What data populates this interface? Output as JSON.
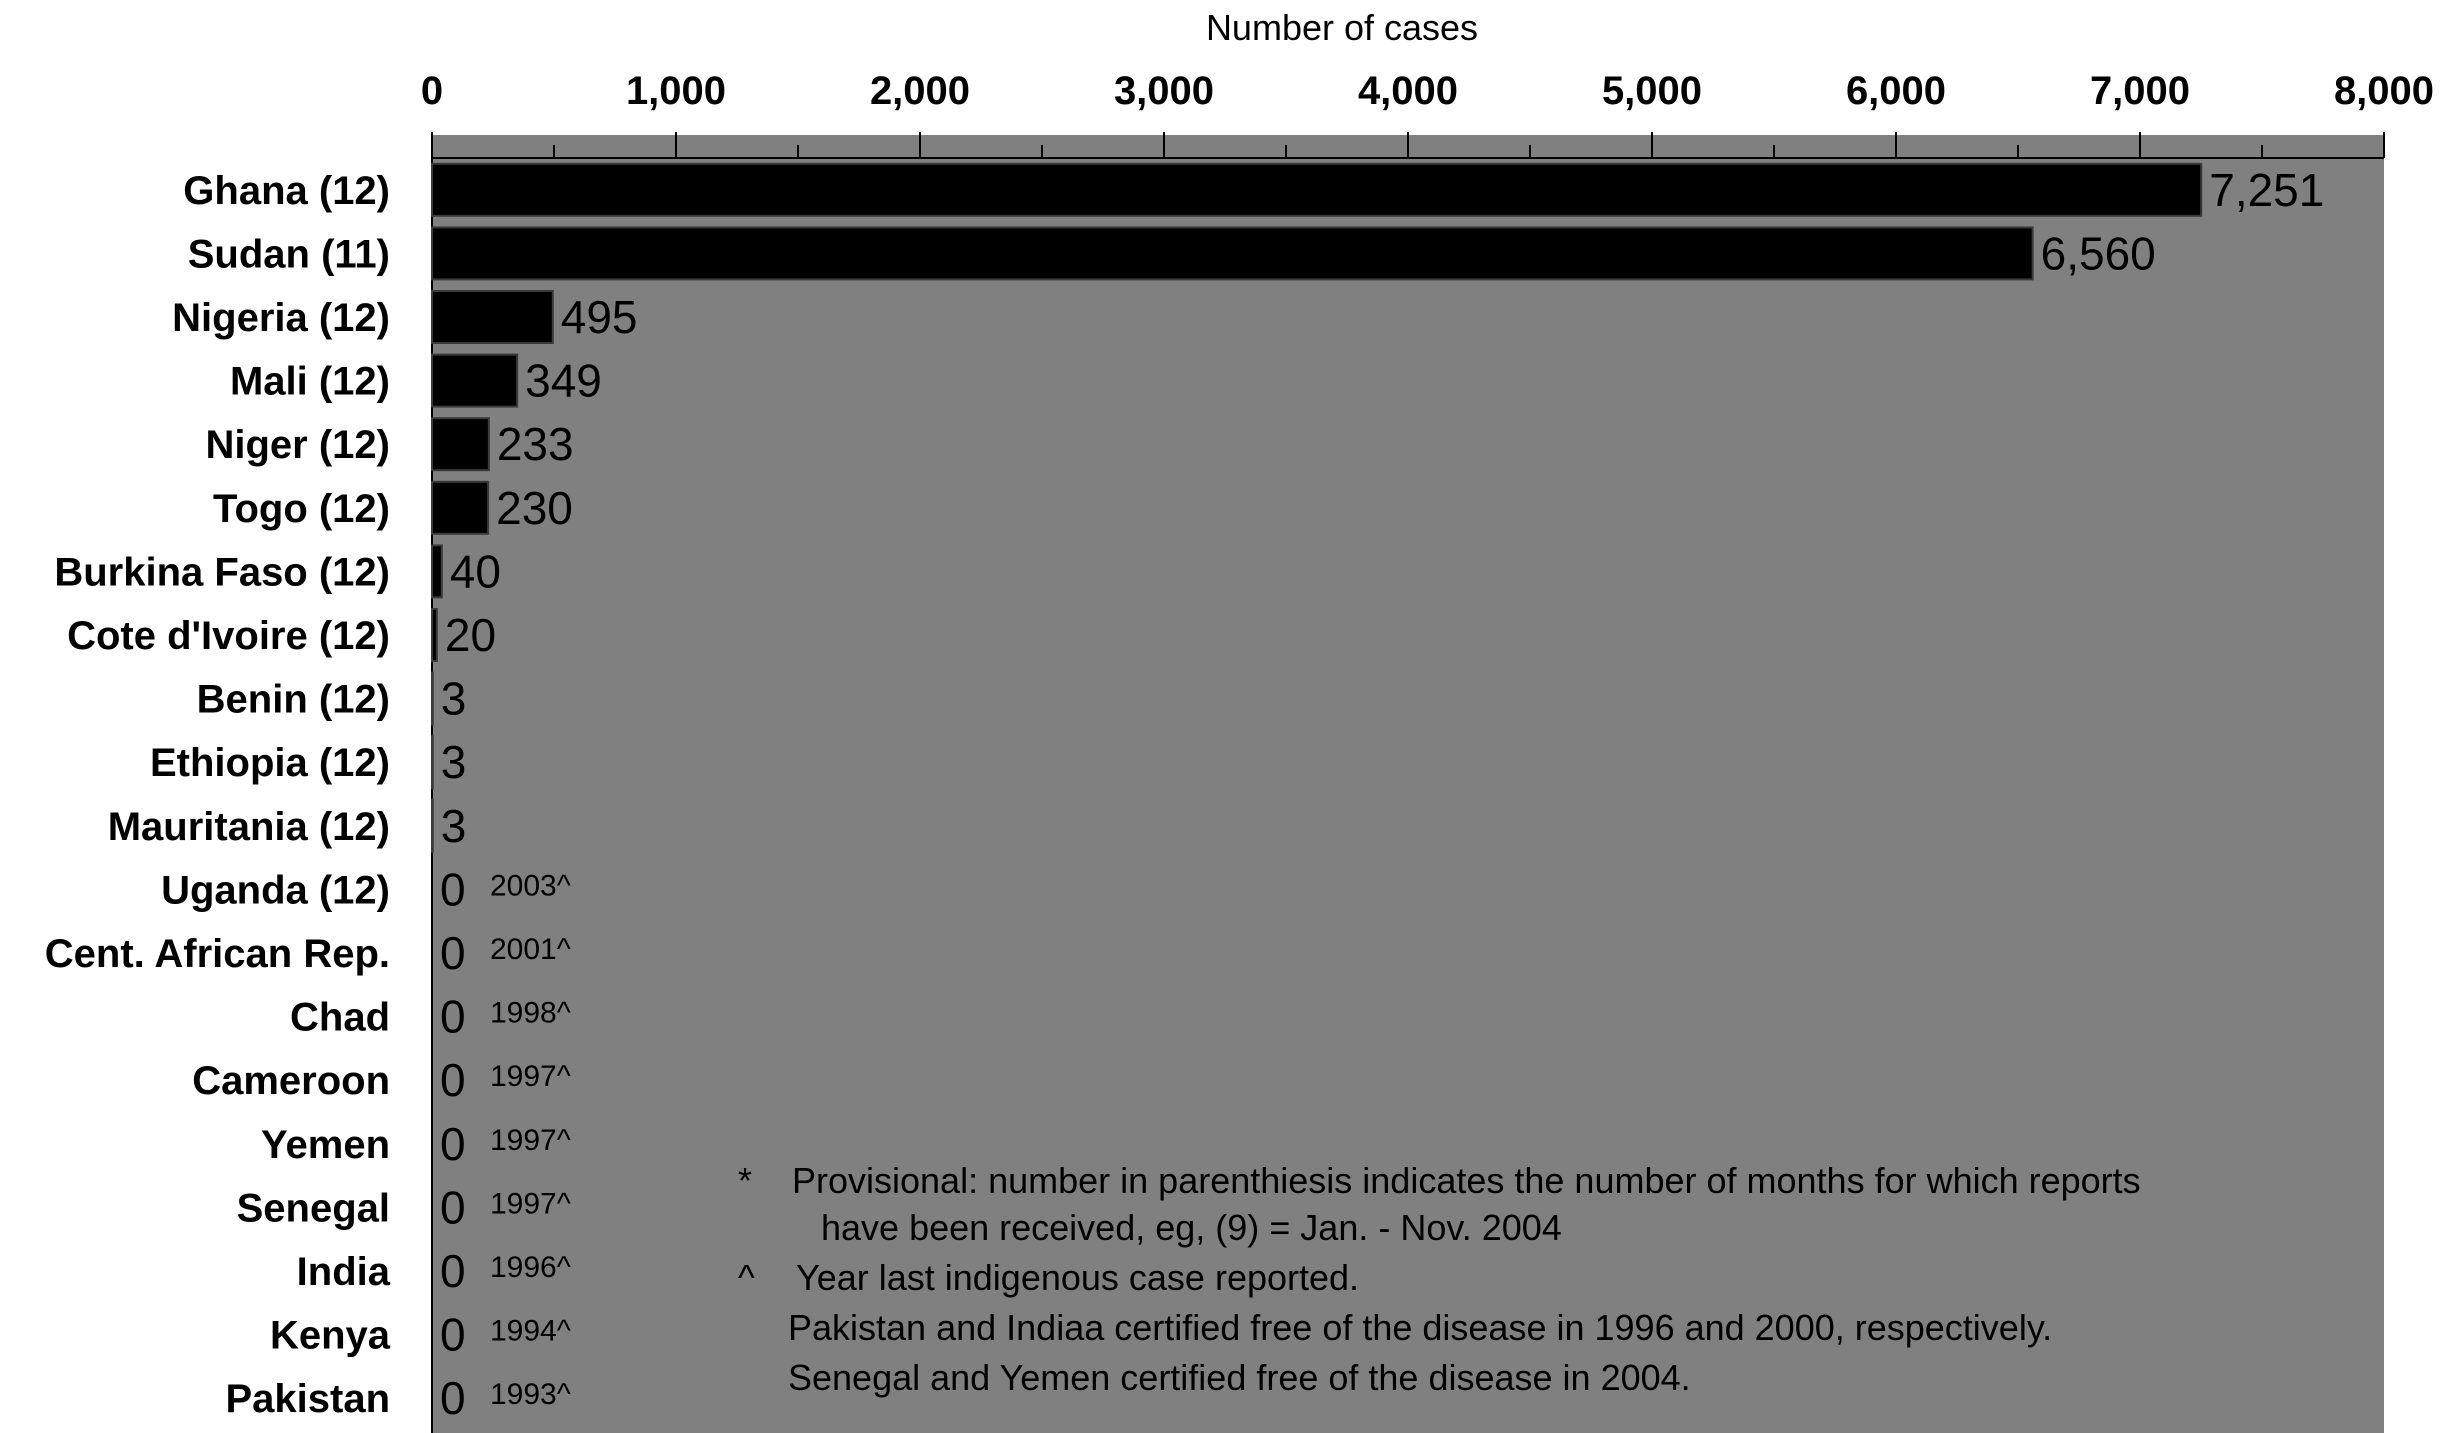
{
  "chart_data": {
    "type": "bar",
    "orientation": "horizontal",
    "xlabel": "Number of cases",
    "xlim": [
      0,
      8000
    ],
    "ticks": [
      0,
      1000,
      2000,
      3000,
      4000,
      5000,
      6000,
      7000,
      8000
    ],
    "tick_labels": [
      "0",
      "1,000",
      "2,000",
      "3,000",
      "4,000",
      "5,000",
      "6,000",
      "7,000",
      "8,000"
    ],
    "categories": [
      "Ghana (12)",
      "Sudan (11)",
      "Nigeria (12)",
      "Mali (12)",
      "Niger (12)",
      "Togo (12)",
      "Burkina Faso (12)",
      "Cote d'Ivoire (12)",
      "Benin (12)",
      "Ethiopia (12)",
      "Mauritania (12)",
      "Uganda (12)",
      "Cent. African Rep.",
      "Chad",
      "Cameroon",
      "Yemen",
      "Senegal",
      "India",
      "Kenya",
      "Pakistan"
    ],
    "values": [
      7251,
      6560,
      495,
      349,
      233,
      230,
      40,
      20,
      3,
      3,
      3,
      0,
      0,
      0,
      0,
      0,
      0,
      0,
      0,
      0
    ],
    "value_labels": [
      "7,251",
      "6,560",
      "495",
      "349",
      "233",
      "230",
      "40",
      "20",
      "3",
      "3",
      "3",
      "0",
      "0",
      "0",
      "0",
      "0",
      "0",
      "0",
      "0",
      "0"
    ],
    "year_notes": [
      "",
      "",
      "",
      "",
      "",
      "",
      "",
      "",
      "",
      "",
      "",
      "2003^",
      "2001^",
      "1998^",
      "1997^",
      "1997^",
      "1997^",
      "1996^",
      "1994^",
      "1993^"
    ],
    "footnotes": [
      {
        "marker": "*",
        "lines": [
          "Provisional: number in parenthiesis indicates the number of months for which reports",
          "have been received, eg, (9) = Jan. - Nov. 2004"
        ]
      },
      {
        "marker": "^",
        "lines": [
          "Year last indigenous case reported.",
          "Pakistan and Indiaa certified free of the disease in 1996 and 2000, respectively.",
          "Senegal and Yemen certified free of the disease in 2004."
        ]
      }
    ],
    "colors": {
      "plot_background": "#808080",
      "bar": "#000000",
      "text": "#000000"
    },
    "grid": false,
    "legend": "none"
  }
}
